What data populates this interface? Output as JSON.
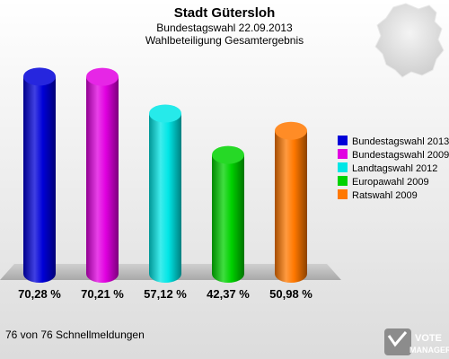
{
  "chart_data": {
    "type": "bar",
    "title": "Stadt Gütersloh",
    "subtitle_1": "Bundestagswahl 22.09.2013",
    "subtitle_2": "Wahlbeteiligung Gesamtergebnis",
    "categories": [
      "Bundestagswahl 2013",
      "Bundestagswahl 2009",
      "Landtagswahl 2012",
      "Europawahl 2009",
      "Ratswahl 2009"
    ],
    "values": [
      70.28,
      70.21,
      57.12,
      42.37,
      50.98
    ],
    "value_labels": [
      "70,28 %",
      "70,21 %",
      "57,12 %",
      "42,37 %",
      "50,98 %"
    ],
    "colors": [
      "#0000d8",
      "#e100e1",
      "#00e6e6",
      "#00d200",
      "#ff7800"
    ],
    "ylim": [
      0,
      80
    ],
    "grid": false,
    "legend_position": "right"
  },
  "footer": "76 von 76 Schnellmeldungen",
  "branding": {
    "logo_line1": "VOTE",
    "logo_line2": "MANAGER"
  }
}
